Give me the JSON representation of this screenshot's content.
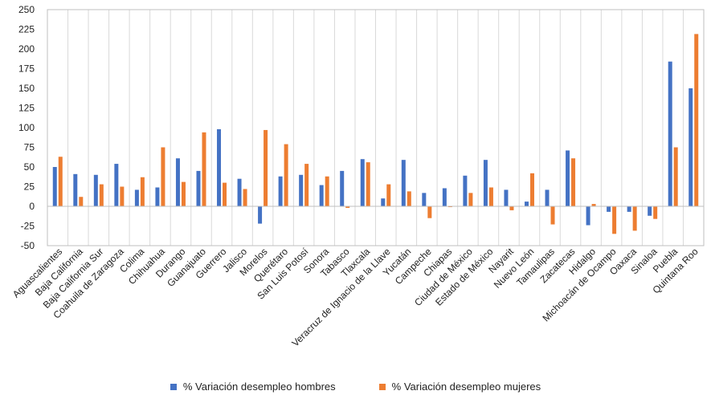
{
  "chart_data": {
    "type": "bar",
    "title": "",
    "xlabel": "",
    "ylabel": "",
    "ylim": [
      -50,
      250
    ],
    "yticks": [
      -50,
      -25,
      0,
      25,
      50,
      75,
      100,
      125,
      150,
      175,
      200,
      225,
      250
    ],
    "yticks_labels": [
      "-50",
      "-25",
      "0",
      "25",
      "50",
      "75",
      "100",
      "125",
      "150",
      "175",
      "200",
      "225",
      "250"
    ],
    "grid": "vertical category separators",
    "legend_position": "bottom",
    "categories": [
      "Aguascalientes",
      "Baja California",
      "Baja California Sur",
      "Coahuila de Zaragoza",
      "Colima",
      "Chihuahua",
      "Durango",
      "Guanajuato",
      "Guerrero",
      "Jalisco",
      "Morelos",
      "Querétaro",
      "San Luis Potosí",
      "Sonora",
      "Tabasco",
      "Tlaxcala",
      "Veracruz de Ignacio de la Llave",
      "Yucatán",
      "Campeche",
      "Chiapas",
      "Ciudad de México",
      "Estado de México",
      "Nayarit",
      "Nuevo León",
      "Tamaulipas",
      "Zacatecas",
      "Hidalgo",
      "Michoacán de Ocampo",
      "Oaxaca",
      "Sinaloa",
      "Puebla",
      "Quintana Roo"
    ],
    "series": [
      {
        "name": "% Variación desempleo hombres",
        "color": "#4472C4",
        "values": [
          50,
          41,
          40,
          54,
          21,
          24,
          61,
          45,
          98,
          35,
          -22,
          38,
          40,
          27,
          45,
          60,
          10,
          59,
          17,
          23,
          39,
          59,
          21,
          6,
          21,
          71,
          -24,
          -7,
          -7,
          -12,
          184,
          150
        ]
      },
      {
        "name": "% Variación desempleo mujeres",
        "color": "#ED7D31",
        "values": [
          63,
          12,
          28,
          25,
          37,
          75,
          31,
          94,
          30,
          22,
          97,
          79,
          54,
          38,
          -2,
          56,
          28,
          19,
          -15,
          -1,
          17,
          24,
          -5,
          42,
          -23,
          61,
          3,
          -35,
          -31,
          -16,
          75,
          219
        ]
      }
    ]
  }
}
